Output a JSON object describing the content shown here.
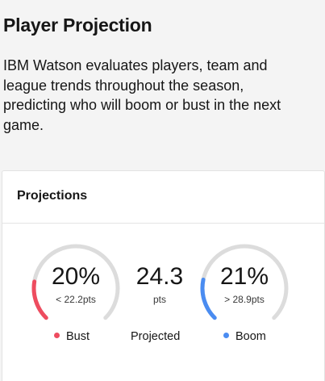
{
  "page": {
    "title": "Player Projection",
    "description": "IBM Watson evaluates players, team and league trends throughout the season, predicting who will boom or bust in the next game."
  },
  "card": {
    "title": "Projections",
    "bust": {
      "value": "20%",
      "sub": "< 22.2pts",
      "label": "Bust",
      "fraction": 0.2,
      "color": "#ee4c5f"
    },
    "projected": {
      "value": "24.3",
      "unit": "pts",
      "label": "Projected"
    },
    "boom": {
      "value": "21%",
      "sub": "> 28.9pts",
      "label": "Boom",
      "fraction": 0.21,
      "color": "#4a8cf1"
    },
    "track_color": "#dcdcdc"
  }
}
